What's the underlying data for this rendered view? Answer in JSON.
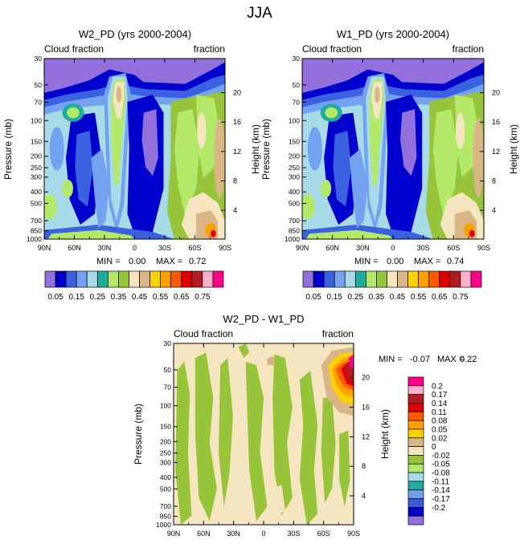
{
  "figure_title": "JJA",
  "colors": {
    "abs_palette": [
      "#9370db",
      "#0000cd",
      "#3a62e0",
      "#75a2f0",
      "#a7dbe8",
      "#20aaa0",
      "#b3e86a",
      "#98c43c",
      "#f5e5c0",
      "#d8b686",
      "#fdd200",
      "#ffa000",
      "#ff5a00",
      "#dd0000",
      "#b01c22",
      "#ffb0c8",
      "#ff008a"
    ],
    "diff_palette": [
      "#9370db",
      "#0000cd",
      "#3a5ad8",
      "#72a0ee",
      "#20aaa0",
      "#a7dbe8",
      "#b3e86a",
      "#98c43c",
      "#f5e5c0",
      "#d8b686",
      "#fdd200",
      "#ffa000",
      "#ff5a00",
      "#dd0000",
      "#b01c22",
      "#ffb0c8",
      "#ff008a"
    ]
  },
  "chart_data": [
    {
      "type": "heatmap",
      "id": "w2",
      "title": "W2_PD (yrs 2000-2004)",
      "left_label": "Cloud fraction",
      "right_label": "fraction",
      "ylabel": "Pressure (mb)",
      "ylabel_right": "Height (km)",
      "x_ticks": [
        "90N",
        "60N",
        "30N",
        "0",
        "30S",
        "60S",
        "90S"
      ],
      "x_range": [
        90,
        -90
      ],
      "y_ticks": [
        30,
        50,
        70,
        100,
        150,
        200,
        250,
        300,
        400,
        500,
        700,
        850,
        1000
      ],
      "y_range": [
        30,
        1000
      ],
      "height_ticks": [
        20,
        16,
        12,
        8,
        4
      ],
      "min_label": "MIN =",
      "min_value": "0.00",
      "max_label": "MAX =",
      "max_value": "0.72",
      "colorbar_labels": [
        "0.05",
        "0.15",
        "0.25",
        "0.35",
        "0.45",
        "0.55",
        "0.65",
        "0.75"
      ]
    },
    {
      "type": "heatmap",
      "id": "w1",
      "title": "W1_PD (yrs 2000-2004)",
      "left_label": "Cloud fraction",
      "right_label": "fraction",
      "ylabel": "Pressure (mb)",
      "ylabel_right": "Height (km)",
      "x_ticks": [
        "90N",
        "60N",
        "30N",
        "0",
        "30S",
        "60S",
        "90S"
      ],
      "x_range": [
        90,
        -90
      ],
      "y_ticks": [
        30,
        50,
        70,
        100,
        150,
        200,
        250,
        300,
        400,
        500,
        700,
        850,
        1000
      ],
      "y_range": [
        30,
        1000
      ],
      "height_ticks": [
        20,
        16,
        12,
        8,
        4
      ],
      "min_label": "MIN =",
      "min_value": "0.00",
      "max_label": "MAX =",
      "max_value": "0.74",
      "colorbar_labels": [
        "0.05",
        "0.15",
        "0.25",
        "0.35",
        "0.45",
        "0.55",
        "0.65",
        "0.75"
      ]
    },
    {
      "type": "heatmap",
      "id": "diff",
      "title": "W2_PD - W1_PD",
      "left_label": "Cloud fraction",
      "right_label": "fraction",
      "ylabel": "Pressure (mb)",
      "ylabel_right": "Height (km)",
      "x_ticks": [
        "90N",
        "60N",
        "30N",
        "0",
        "30S",
        "60S",
        "90S"
      ],
      "x_range": [
        90,
        -90
      ],
      "y_ticks": [
        30,
        50,
        70,
        100,
        150,
        200,
        250,
        300,
        400,
        500,
        700,
        850,
        1000
      ],
      "y_range": [
        30,
        1000
      ],
      "height_ticks": [
        20,
        16,
        12,
        8,
        4
      ],
      "min_label": "MIN =",
      "min_value": "-0.07",
      "max_label": "MAX =",
      "max_value": "0.22",
      "colorbar_labels": [
        "0.2",
        "0.17",
        "0.14",
        "0.11",
        "0.08",
        "0.05",
        "0.02",
        "0",
        "-0.02",
        "-0.05",
        "-0.08",
        "-0.11",
        "-0.14",
        "-0.17",
        "-0.2"
      ]
    }
  ]
}
